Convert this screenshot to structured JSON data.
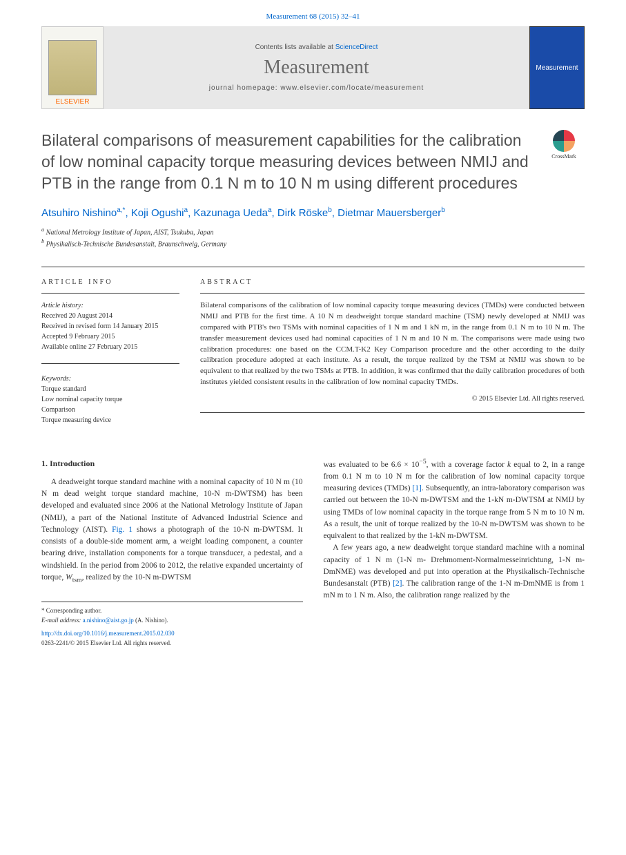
{
  "header": {
    "citation": "Measurement 68 (2015) 32–41"
  },
  "banner": {
    "publisher": "ELSEVIER",
    "contents_prefix": "Contents lists available at ",
    "contents_link": "ScienceDirect",
    "journal": "Measurement",
    "homepage_prefix": "journal homepage: ",
    "homepage_url": "www.elsevier.com/locate/measurement",
    "cover_label": "Measurement"
  },
  "article": {
    "title": "Bilateral comparisons of measurement capabilities for the calibration of low nominal capacity torque measuring devices between NMIJ and PTB in the range from 0.1 N m to 10 N m using different procedures",
    "crossmark": "CrossMark",
    "authors_html": "Atsuhiro Nishino|a,*|, Koji Ogushi|a|, Kazunaga Ueda|a|, Dirk Röske|b|, Dietmar Mauersberger|b|",
    "affiliations": {
      "a": "National Metrology Institute of Japan, AIST, Tsukuba, Japan",
      "b": "Physikalisch-Technische Bundesanstalt, Braunschweig, Germany"
    }
  },
  "info": {
    "heading": "ARTICLE INFO",
    "history_label": "Article history:",
    "history": [
      "Received 20 August 2014",
      "Received in revised form 14 January 2015",
      "Accepted 9 February 2015",
      "Available online 27 February 2015"
    ],
    "keywords_label": "Keywords:",
    "keywords": [
      "Torque standard",
      "Low nominal capacity torque",
      "Comparison",
      "Torque measuring device"
    ]
  },
  "abstract": {
    "heading": "ABSTRACT",
    "text": "Bilateral comparisons of the calibration of low nominal capacity torque measuring devices (TMDs) were conducted between NMIJ and PTB for the first time. A 10 N m deadweight torque standard machine (TSM) newly developed at NMIJ was compared with PTB's two TSMs with nominal capacities of 1 N m and 1 kN m, in the range from 0.1 N m to 10 N m. The transfer measurement devices used had nominal capacities of 1 N m and 10 N m. The comparisons were made using two calibration procedures: one based on the CCM.T-K2 Key Comparison procedure and the other according to the daily calibration procedure adopted at each institute. As a result, the torque realized by the TSM at NMIJ was shown to be equivalent to that realized by the two TSMs at PTB. In addition, it was confirmed that the daily calibration procedures of both institutes yielded consistent results in the calibration of low nominal capacity TMDs.",
    "copyright": "© 2015 Elsevier Ltd. All rights reserved."
  },
  "body": {
    "section1_heading": "1. Introduction",
    "col1_p1": "A deadweight torque standard machine with a nominal capacity of 10 N m (10 N m dead weight torque standard machine, 10-N m-DWTSM) has been developed and evaluated since 2006 at the National Metrology Institute of Japan (NMIJ), a part of the National Institute of Advanced Industrial Science and Technology (AIST). Fig. 1 shows a photograph of the 10-N m-DWTSM. It consists of a double-side moment arm, a weight loading component, a counter bearing drive, installation components for a torque transducer, a pedestal, and a windshield. In the period from 2006 to 2012, the relative expanded uncertainty of torque, Wtsm, realized by the 10-N m-DWTSM",
    "col2_p1_prefix": "was evaluated to be 6.6 × 10",
    "col2_p1_exp": "−5",
    "col2_p1_rest": ", with a coverage factor k equal to 2, in a range from 0.1 N m to 10 N m for the calibration of low nominal capacity torque measuring devices (TMDs) [1]. Subsequently, an intra-laboratory comparison was carried out between the 10-N m-DWTSM and the 1-kN m-DWTSM at NMIJ by using TMDs of low nominal capacity in the torque range from 5 N m to 10 N m. As a result, the unit of torque realized by the 10-N m-DWTSM was shown to be equivalent to that realized by the 1-kN m-DWTSM.",
    "col2_p2": "A few years ago, a new deadweight torque standard machine with a nominal capacity of 1 N m (1-N m- Drehmoment-Normalmesseinrichtung, 1-N m-DmNME) was developed and put into operation at the Physikalisch-Technische Bundesanstalt (PTB) [2]. The calibration range of the 1-N m-DmNME is from 1 mN m to 1 N m. Also, the calibration range realized by the"
  },
  "footer": {
    "corresponding": "* Corresponding author.",
    "email_label": "E-mail address: ",
    "email": "a.nishino@aist.go.jp",
    "email_suffix": " (A. Nishino).",
    "doi": "http://dx.doi.org/10.1016/j.measurement.2015.02.030",
    "issn": "0263-2241/© 2015 Elsevier Ltd. All rights reserved."
  }
}
